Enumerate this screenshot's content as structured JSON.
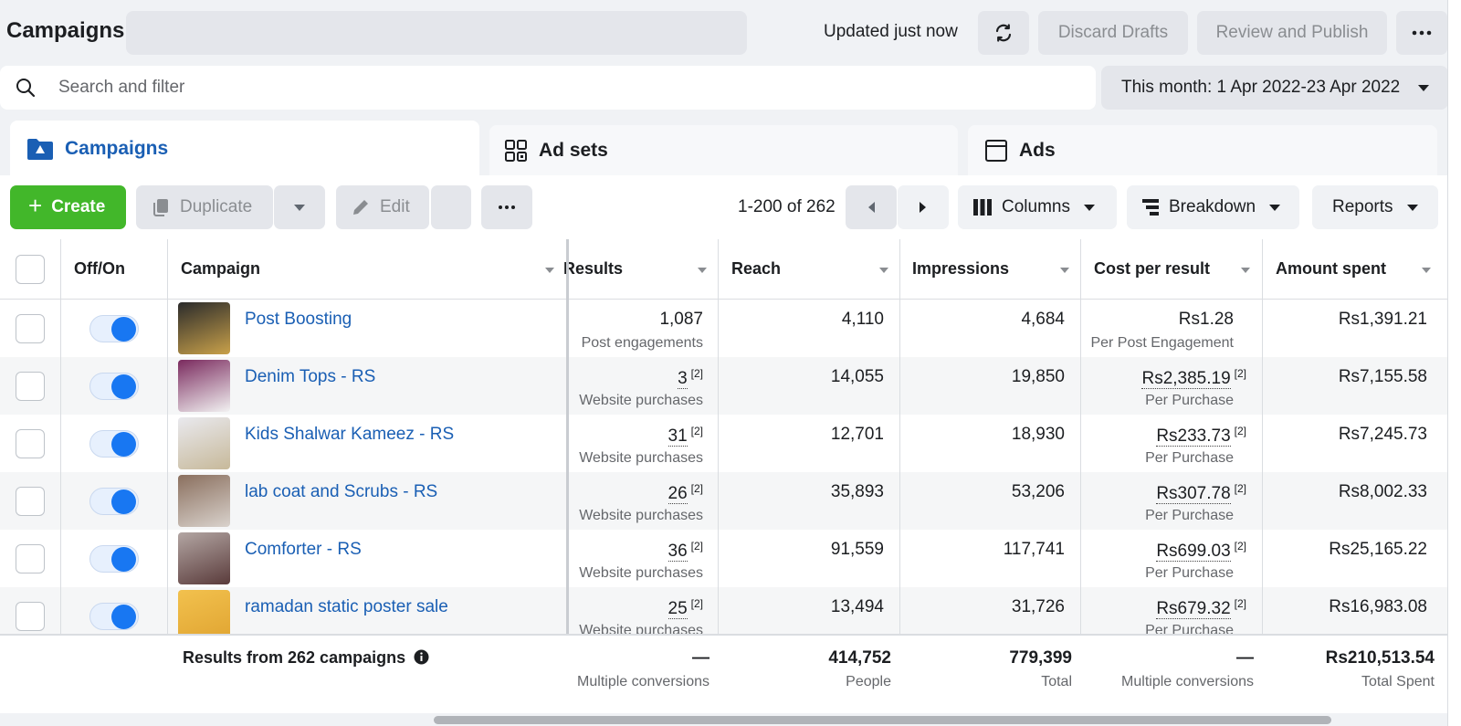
{
  "header": {
    "title": "Campaigns",
    "updated_text": "Updated just now",
    "refresh_icon": "refresh-icon",
    "discard_label": "Discard Drafts",
    "review_label": "Review and Publish",
    "more_icon": "more-icon"
  },
  "search": {
    "placeholder": "Search and filter",
    "value": ""
  },
  "date_range": {
    "label": "This month: 1 Apr 2022-23 Apr 2022"
  },
  "tabs": [
    {
      "label": "Campaigns",
      "icon": "folder-icon",
      "active": true
    },
    {
      "label": "Ad sets",
      "icon": "grid-icon",
      "active": false
    },
    {
      "label": "Ads",
      "icon": "ad-window-icon",
      "active": false
    }
  ],
  "toolbar": {
    "create_label": "Create",
    "duplicate_label": "Duplicate",
    "edit_label": "Edit",
    "pagination": "1-200 of 262",
    "columns_label": "Columns",
    "breakdown_label": "Breakdown",
    "reports_label": "Reports"
  },
  "table": {
    "columns": [
      "Off/On",
      "Campaign",
      "Results",
      "Reach",
      "Impressions",
      "Cost per result",
      "Amount spent"
    ],
    "rows": [
      {
        "name": "Post Boosting",
        "on": true,
        "results": "1,087",
        "results_sup": "",
        "results_sub": "Post engagements",
        "reach": "4,110",
        "impressions": "4,684",
        "cost": "Rs1.28",
        "cost_sup": "",
        "cost_sub": "Per Post Engagement",
        "spent": "Rs1,391.21"
      },
      {
        "name": "Denim Tops - RS",
        "on": true,
        "results": "3",
        "results_sup": "[2]",
        "results_sub": "Website purchases",
        "reach": "14,055",
        "impressions": "19,850",
        "cost": "Rs2,385.19",
        "cost_sup": "[2]",
        "cost_sub": "Per Purchase",
        "spent": "Rs7,155.58"
      },
      {
        "name": "Kids Shalwar Kameez - RS",
        "on": true,
        "results": "31",
        "results_sup": "[2]",
        "results_sub": "Website purchases",
        "reach": "12,701",
        "impressions": "18,930",
        "cost": "Rs233.73",
        "cost_sup": "[2]",
        "cost_sub": "Per Purchase",
        "spent": "Rs7,245.73"
      },
      {
        "name": "lab coat and Scrubs - RS",
        "on": true,
        "results": "26",
        "results_sup": "[2]",
        "results_sub": "Website purchases",
        "reach": "35,893",
        "impressions": "53,206",
        "cost": "Rs307.78",
        "cost_sup": "[2]",
        "cost_sub": "Per Purchase",
        "spent": "Rs8,002.33"
      },
      {
        "name": "Comforter - RS",
        "on": true,
        "results": "36",
        "results_sup": "[2]",
        "results_sub": "Website purchases",
        "reach": "91,559",
        "impressions": "117,741",
        "cost": "Rs699.03",
        "cost_sup": "[2]",
        "cost_sub": "Per Purchase",
        "spent": "Rs25,165.22"
      },
      {
        "name": "ramadan static poster sale",
        "on": true,
        "results": "25",
        "results_sup": "[2]",
        "results_sub": "Website purchases",
        "reach": "13,494",
        "impressions": "31,726",
        "cost": "Rs679.32",
        "cost_sup": "[2]",
        "cost_sub": "Per Purchase",
        "spent": "Rs16,983.08"
      }
    ],
    "summary": {
      "label": "Results from 262 campaigns",
      "results": "—",
      "results_sub": "Multiple conversions",
      "reach": "414,752",
      "reach_sub": "People",
      "impressions": "779,399",
      "impressions_sub": "Total",
      "cost": "—",
      "cost_sub": "Multiple conversions",
      "spent": "Rs210,513.54",
      "spent_sub": "Total Spent"
    }
  },
  "colors": {
    "accent": "#1877f2",
    "create": "#42b72a",
    "link": "#1a5fb4"
  }
}
